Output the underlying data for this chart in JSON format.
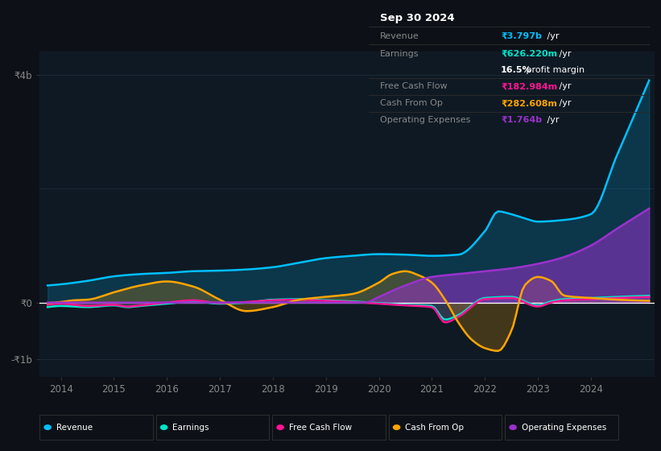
{
  "background_color": "#0d1117",
  "plot_bg_color": "#0f1923",
  "grid_color": "#1e2d3d",
  "zero_line_color": "#ffffff",
  "revenue_color": "#00bfff",
  "earnings_color": "#00e5cc",
  "free_cash_flow_color": "#ff1493",
  "cash_from_op_color": "#ffa500",
  "operating_expenses_color": "#9932cc",
  "info_box_bg": "#050505",
  "info_box_border": "#333333",
  "label_color": "#888888",
  "tick_color": "#888888",
  "ytick_label": [
    "-₹1b",
    "₹0",
    "₹4b"
  ],
  "ytick_vals": [
    -1.0,
    0.0,
    4.0
  ],
  "xtick_vals": [
    2014,
    2015,
    2016,
    2017,
    2018,
    2019,
    2020,
    2021,
    2022,
    2023,
    2024
  ],
  "info_box": {
    "title": "Sep 30 2024",
    "rows": [
      {
        "label": "Revenue",
        "value": "₹3.797b /yr",
        "color": "#00bfff",
        "separator_above": true
      },
      {
        "label": "Earnings",
        "value": "₹626.220m /yr",
        "color": "#00e5cc",
        "separator_above": true
      },
      {
        "label": "",
        "value": "16.5% profit margin",
        "color": "#ffffff",
        "separator_above": false
      },
      {
        "label": "Free Cash Flow",
        "value": "₹182.984m /yr",
        "color": "#ff1493",
        "separator_above": true
      },
      {
        "label": "Cash From Op",
        "value": "₹282.608m /yr",
        "color": "#ffa500",
        "separator_above": true
      },
      {
        "label": "Operating Expenses",
        "value": "₹1.764b /yr",
        "color": "#9932cc",
        "separator_above": true
      }
    ]
  },
  "legend_items": [
    {
      "label": "Revenue",
      "color": "#00bfff"
    },
    {
      "label": "Earnings",
      "color": "#00e5cc"
    },
    {
      "label": "Free Cash Flow",
      "color": "#ff1493"
    },
    {
      "label": "Cash From Op",
      "color": "#ffa500"
    },
    {
      "label": "Operating Expenses",
      "color": "#9932cc"
    }
  ]
}
